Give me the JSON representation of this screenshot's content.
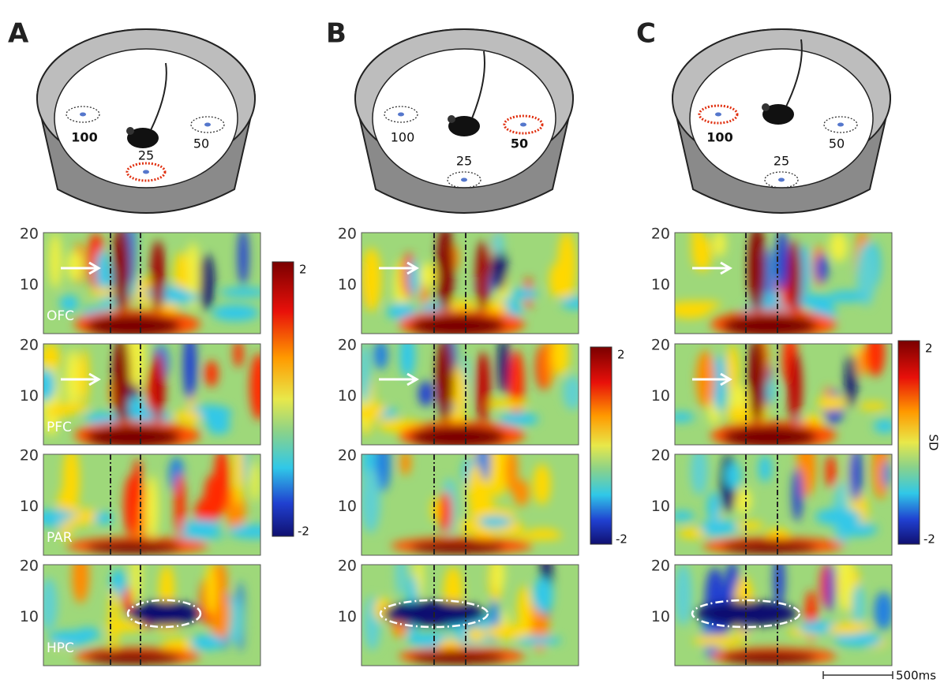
{
  "panels": [
    {
      "letter": "A",
      "reward_labels": [
        "100",
        "50",
        "25"
      ],
      "highlight": 2,
      "bold": 0
    },
    {
      "letter": "B",
      "reward_labels": [
        "100",
        "50",
        "25"
      ],
      "highlight": 1,
      "bold": 1
    },
    {
      "letter": "C",
      "reward_labels": [
        "100",
        "50",
        "25"
      ],
      "highlight": 0,
      "bold": 0
    }
  ],
  "regions": [
    "OFC",
    "PFC",
    "PAR",
    "HPC"
  ],
  "yticks": [
    20,
    10
  ],
  "colorbar": {
    "max": 2,
    "min": -2,
    "label": "SD"
  },
  "scale_bar": "500ms"
}
